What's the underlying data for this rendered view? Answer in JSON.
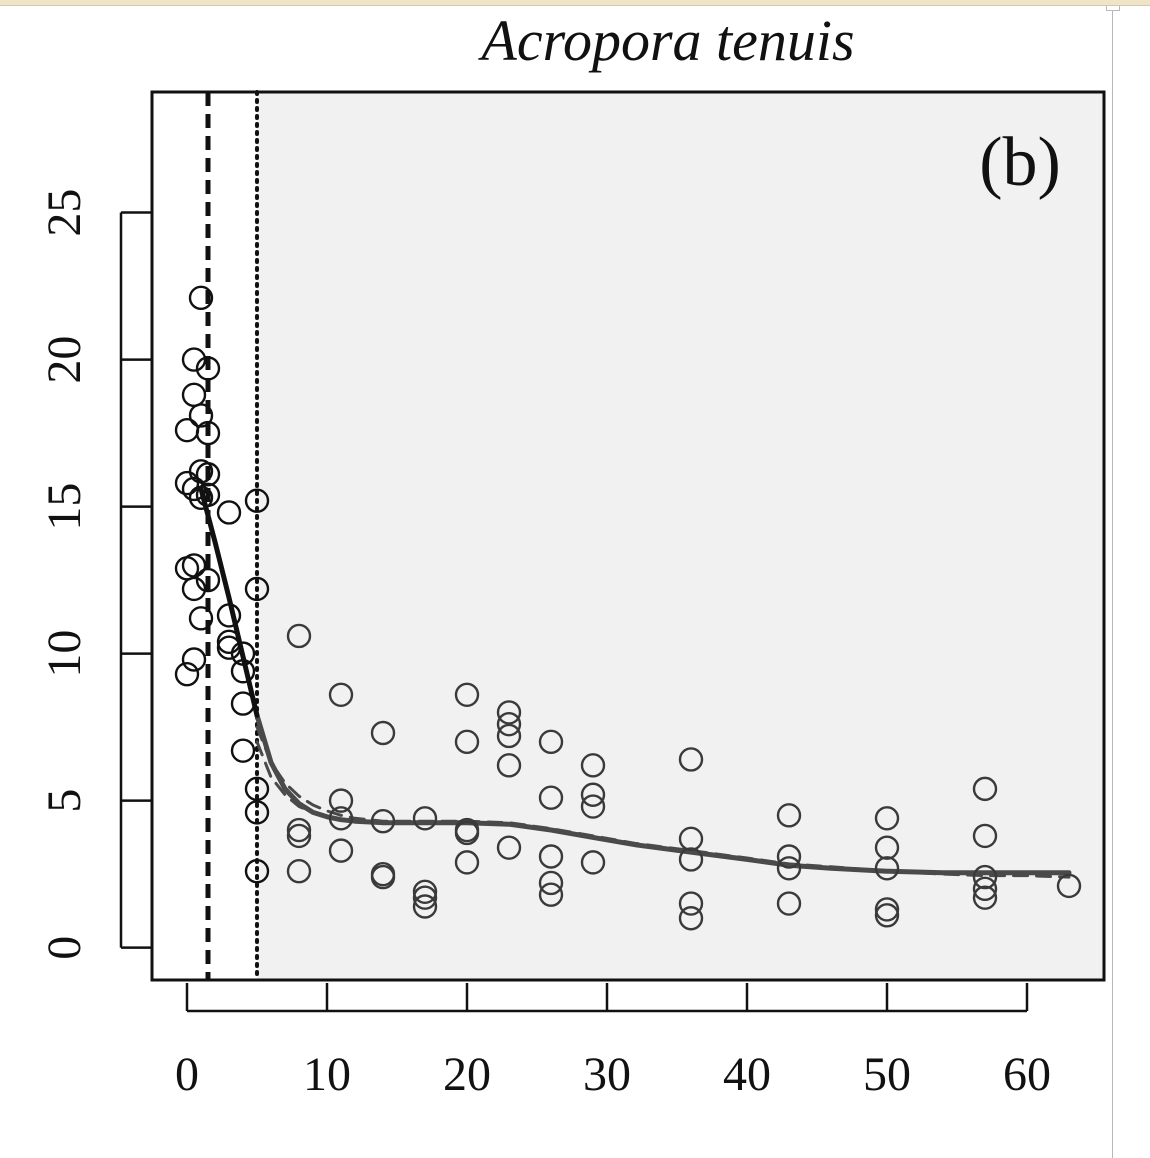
{
  "chart_data": {
    "type": "scatter",
    "title": "Acropora tenuis",
    "panel_label": "(b)",
    "xlabel": "",
    "ylabel": "",
    "xlim": [
      -2.5,
      65.5
    ],
    "ylim": [
      -1.1,
      29.1
    ],
    "x_ticks": [
      0,
      10,
      20,
      30,
      40,
      50,
      60
    ],
    "y_ticks": [
      0,
      5,
      10,
      15,
      20,
      25
    ],
    "grid": false,
    "shaded_region": {
      "x_start": 5,
      "fill": "#f1f1f1"
    },
    "vlines": [
      {
        "x": 1.5,
        "style": "dashed",
        "color": "#111111"
      },
      {
        "x": 5,
        "style": "dotted",
        "color": "#111111"
      }
    ],
    "points": [
      {
        "x": 1.0,
        "y": 22.1
      },
      {
        "x": 0.5,
        "y": 20.0
      },
      {
        "x": 1.5,
        "y": 19.7
      },
      {
        "x": 0.5,
        "y": 18.8
      },
      {
        "x": 1.0,
        "y": 18.1
      },
      {
        "x": 0.0,
        "y": 17.6
      },
      {
        "x": 1.5,
        "y": 17.5
      },
      {
        "x": 1.0,
        "y": 16.2
      },
      {
        "x": 1.5,
        "y": 16.1
      },
      {
        "x": 0.0,
        "y": 15.8
      },
      {
        "x": 0.5,
        "y": 15.6
      },
      {
        "x": 1.5,
        "y": 15.4
      },
      {
        "x": 1.0,
        "y": 15.3
      },
      {
        "x": 3.0,
        "y": 14.8
      },
      {
        "x": 5.0,
        "y": 15.2
      },
      {
        "x": 0.0,
        "y": 12.9
      },
      {
        "x": 0.5,
        "y": 13.0
      },
      {
        "x": 0.5,
        "y": 12.2
      },
      {
        "x": 1.5,
        "y": 12.5
      },
      {
        "x": 5.0,
        "y": 12.2
      },
      {
        "x": 3.0,
        "y": 11.3
      },
      {
        "x": 1.0,
        "y": 11.2
      },
      {
        "x": 3.0,
        "y": 10.4
      },
      {
        "x": 3.0,
        "y": 10.2
      },
      {
        "x": 4.0,
        "y": 10.0
      },
      {
        "x": 0.5,
        "y": 9.8
      },
      {
        "x": 0.0,
        "y": 9.3
      },
      {
        "x": 4.0,
        "y": 9.4
      },
      {
        "x": 4.0,
        "y": 8.3
      },
      {
        "x": 8.0,
        "y": 10.6
      },
      {
        "x": 11.0,
        "y": 8.6
      },
      {
        "x": 4.0,
        "y": 6.7
      },
      {
        "x": 5.0,
        "y": 5.4
      },
      {
        "x": 5.0,
        "y": 4.6
      },
      {
        "x": 5.0,
        "y": 2.6
      },
      {
        "x": 8.0,
        "y": 4.0
      },
      {
        "x": 8.0,
        "y": 3.8
      },
      {
        "x": 8.0,
        "y": 2.6
      },
      {
        "x": 11.0,
        "y": 5.0
      },
      {
        "x": 11.0,
        "y": 4.4
      },
      {
        "x": 11.0,
        "y": 3.3
      },
      {
        "x": 14.0,
        "y": 7.3
      },
      {
        "x": 14.0,
        "y": 4.3
      },
      {
        "x": 14.0,
        "y": 2.5
      },
      {
        "x": 14.0,
        "y": 2.4
      },
      {
        "x": 17.0,
        "y": 4.4
      },
      {
        "x": 17.0,
        "y": 1.9
      },
      {
        "x": 17.0,
        "y": 1.7
      },
      {
        "x": 17.0,
        "y": 1.4
      },
      {
        "x": 20.0,
        "y": 8.6
      },
      {
        "x": 20.0,
        "y": 7.0
      },
      {
        "x": 20.0,
        "y": 4.0
      },
      {
        "x": 20.0,
        "y": 3.9
      },
      {
        "x": 20.0,
        "y": 2.9
      },
      {
        "x": 23.0,
        "y": 8.0
      },
      {
        "x": 23.0,
        "y": 7.6
      },
      {
        "x": 23.0,
        "y": 7.2
      },
      {
        "x": 23.0,
        "y": 6.2
      },
      {
        "x": 23.0,
        "y": 3.4
      },
      {
        "x": 26.0,
        "y": 7.0
      },
      {
        "x": 26.0,
        "y": 5.1
      },
      {
        "x": 26.0,
        "y": 3.1
      },
      {
        "x": 26.0,
        "y": 2.2
      },
      {
        "x": 26.0,
        "y": 1.8
      },
      {
        "x": 29.0,
        "y": 6.2
      },
      {
        "x": 29.0,
        "y": 5.2
      },
      {
        "x": 29.0,
        "y": 4.8
      },
      {
        "x": 29.0,
        "y": 2.9
      },
      {
        "x": 36.0,
        "y": 6.4
      },
      {
        "x": 36.0,
        "y": 3.7
      },
      {
        "x": 36.0,
        "y": 3.0
      },
      {
        "x": 36.0,
        "y": 1.5
      },
      {
        "x": 36.0,
        "y": 1.0
      },
      {
        "x": 43.0,
        "y": 4.5
      },
      {
        "x": 43.0,
        "y": 3.1
      },
      {
        "x": 43.0,
        "y": 2.7
      },
      {
        "x": 43.0,
        "y": 1.5
      },
      {
        "x": 50.0,
        "y": 4.4
      },
      {
        "x": 50.0,
        "y": 3.4
      },
      {
        "x": 50.0,
        "y": 2.7
      },
      {
        "x": 50.0,
        "y": 1.3
      },
      {
        "x": 50.0,
        "y": 1.1
      },
      {
        "x": 57.0,
        "y": 5.4
      },
      {
        "x": 57.0,
        "y": 3.8
      },
      {
        "x": 57.0,
        "y": 2.4
      },
      {
        "x": 57.0,
        "y": 2.0
      },
      {
        "x": 57.0,
        "y": 1.7
      },
      {
        "x": 63.0,
        "y": 2.1
      }
    ],
    "point_color_before_shade": "#111111",
    "point_color_in_shade": "#3a3a3a",
    "fit_black": {
      "color": "#111111",
      "x": [
        1.0,
        2.0,
        3.0,
        4.0,
        5.0
      ],
      "y": [
        15.6,
        13.8,
        11.9,
        9.9,
        7.9
      ]
    },
    "fit_grey_solid": {
      "color": "#4a4a4a",
      "x": [
        5.0,
        6.0,
        7.0,
        8.0,
        9.0,
        10.0,
        11.0,
        12.0,
        14.0,
        17.0,
        20.0,
        23.0,
        26.0,
        29.0,
        32.0,
        36.0,
        40.0,
        43.0,
        46.0,
        50.0,
        54.0,
        57.0,
        60.0,
        63.0
      ],
      "y": [
        7.9,
        6.3,
        5.4,
        4.9,
        4.6,
        4.45,
        4.35,
        4.3,
        4.25,
        4.25,
        4.25,
        4.2,
        4.0,
        3.75,
        3.5,
        3.25,
        3.0,
        2.8,
        2.7,
        2.6,
        2.55,
        2.55,
        2.55,
        2.55
      ]
    },
    "fit_grey_dashed_upper": {
      "color": "#4a4a4a",
      "x": [
        5.0,
        6.0,
        7.0,
        8.0,
        9.0,
        10.0,
        11.0,
        12.0,
        14.0,
        17.0,
        20.0,
        23.0,
        26.0,
        29.0,
        32.0,
        36.0,
        40.0,
        43.0,
        46.0,
        50.0,
        54.0,
        57.0,
        60.0,
        63.0
      ],
      "y": [
        7.5,
        6.3,
        5.6,
        5.15,
        4.85,
        4.65,
        4.5,
        4.4,
        4.3,
        4.3,
        4.3,
        4.25,
        4.05,
        3.8,
        3.55,
        3.3,
        3.05,
        2.85,
        2.75,
        2.6,
        2.5,
        2.45,
        2.45,
        2.4
      ]
    },
    "fit_grey_dashed_lower": {
      "color": "#4a4a4a",
      "x": [
        5.0,
        6.0,
        7.0,
        8.0,
        9.0,
        10.0,
        11.0
      ],
      "y": [
        7.0,
        5.8,
        5.2,
        4.8,
        4.6,
        4.45,
        4.35
      ]
    }
  }
}
